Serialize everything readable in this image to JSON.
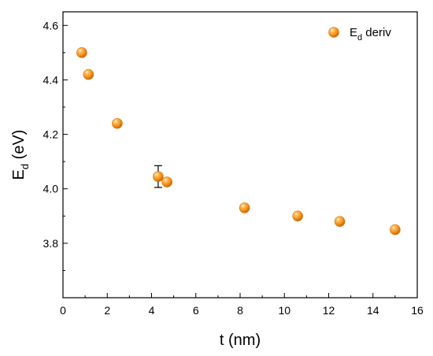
{
  "chart_data": {
    "type": "scatter",
    "xlabel": "t (nm)",
    "ylabel": {
      "main": "E",
      "sub": "d",
      "tail": " (eV)"
    },
    "xlim": [
      0,
      16
    ],
    "ylim": [
      3.6,
      4.65
    ],
    "xticks": [
      0,
      2,
      4,
      6,
      8,
      10,
      12,
      14,
      16
    ],
    "yticks": [
      3.8,
      4.0,
      4.2,
      4.4,
      4.6
    ],
    "legend": {
      "main": "E",
      "sub": "d",
      "tail": " deriv",
      "placement": "top-right"
    },
    "series": [
      {
        "name": "Ed deriv",
        "color": "#f7941d",
        "points": [
          {
            "x": 0.85,
            "y": 4.5
          },
          {
            "x": 1.15,
            "y": 4.42
          },
          {
            "x": 2.45,
            "y": 4.24
          },
          {
            "x": 4.3,
            "y": 4.045,
            "err": 0.04
          },
          {
            "x": 4.7,
            "y": 4.025
          },
          {
            "x": 8.2,
            "y": 3.93
          },
          {
            "x": 10.6,
            "y": 3.9
          },
          {
            "x": 12.5,
            "y": 3.88
          },
          {
            "x": 15.0,
            "y": 3.85
          }
        ]
      }
    ]
  }
}
